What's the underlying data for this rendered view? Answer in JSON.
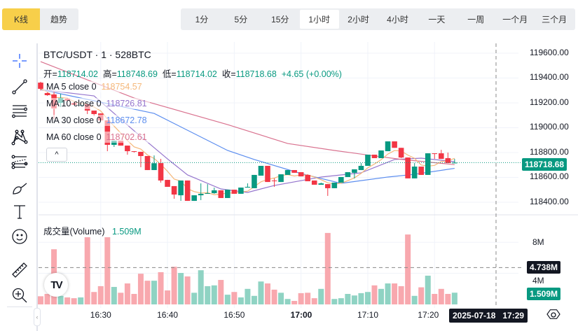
{
  "topbar": {
    "chart_modes": [
      {
        "label": "K线",
        "active": true
      },
      {
        "label": "趋势",
        "active": false
      }
    ],
    "intervals": [
      {
        "label": "1分",
        "active": false
      },
      {
        "label": "5分",
        "active": false
      },
      {
        "label": "15分",
        "active": false
      },
      {
        "label": "1小时",
        "active": true
      },
      {
        "label": "2小时",
        "active": false
      },
      {
        "label": "4小时",
        "active": false
      },
      {
        "label": "一天",
        "active": false
      },
      {
        "label": "一周",
        "active": false
      },
      {
        "label": "一个月",
        "active": false
      },
      {
        "label": "三个月",
        "active": false
      }
    ]
  },
  "toolbar": {
    "icons": [
      "crosshair-icon",
      "trend-line-icon",
      "fib-retracement-icon",
      "pattern-icon",
      "parallel-channel-icon",
      "brush-icon",
      "text-icon",
      "emoji-icon",
      "ruler-icon",
      "zoom-in-icon"
    ]
  },
  "legend": {
    "title": "BTC/USDT · 1 · 528BTC",
    "open_label": "开=",
    "open": "118714.02",
    "high_label": "高=",
    "high": "118748.69",
    "low_label": "低=",
    "low": "118714.02",
    "close_label": "收=",
    "close": "118718.68",
    "change": "+4.65 (+0.00%)",
    "ma": [
      {
        "label": "MA 5 close 0",
        "value": "118754.57",
        "color": "#f5b87a"
      },
      {
        "label": "MA 10 close 0",
        "value": "118726.81",
        "color": "#9575cd"
      },
      {
        "label": "MA 30 close 0",
        "value": "118672.78",
        "color": "#5b8def"
      },
      {
        "label": "MA 60 close 0",
        "value": "118702.61",
        "color": "#d9728f"
      }
    ],
    "collapse_symbol": "^"
  },
  "volume_legend": {
    "label": "成交量(Volume)",
    "value": "1.509M"
  },
  "price_axis": {
    "ticks": [
      "119600.00",
      "119400.00",
      "119200.00",
      "119000.00",
      "118800.00",
      "118600.00",
      "118400.00"
    ],
    "last_price": "118718.68"
  },
  "volume_axis": {
    "ticks": [
      "8M",
      "4M"
    ],
    "crosshair_value": "4.738M",
    "last_volume": "1.509M"
  },
  "time_axis": {
    "ticks": [
      "16:30",
      "16:40",
      "16:50",
      "17:00",
      "17:10",
      "17:20"
    ],
    "crosshair_label": "2025-07-18   17:29"
  },
  "colors": {
    "up": "#089981",
    "down": "#f23645",
    "vol_up": "#8fd3c3",
    "vol_down": "#f8a8ae",
    "accent": "#f7cf4a",
    "tag_dark": "#131722"
  },
  "chart_data": {
    "type": "candlestick",
    "symbol": "BTC/USDT",
    "interval": "1",
    "price_range": [
      118400,
      119600
    ],
    "grid": true,
    "candles": [
      {
        "t": "16:21",
        "o": 119363,
        "h": 119370,
        "l": 119300,
        "c": 119313,
        "v": 1.05
      },
      {
        "t": "16:22",
        "o": 119279,
        "h": 119285,
        "l": 119257,
        "c": 119262,
        "v": 1.35
      },
      {
        "t": "16:23",
        "o": 119268,
        "h": 119296,
        "l": 119070,
        "c": 119155,
        "v": 7.1
      },
      {
        "t": "16:24",
        "o": 119200,
        "h": 119273,
        "l": 119166,
        "c": 119239,
        "v": 1.1
      },
      {
        "t": "16:25",
        "o": 119234,
        "h": 119240,
        "l": 119217,
        "c": 119217,
        "v": 0.9
      },
      {
        "t": "16:26",
        "o": 119200,
        "h": 119205,
        "l": 119183,
        "c": 119183,
        "v": 0.8
      },
      {
        "t": "16:27",
        "o": 119181,
        "h": 119189,
        "l": 119178,
        "c": 119184,
        "v": 0.9
      },
      {
        "t": "16:28",
        "o": 119189,
        "h": 119189,
        "l": 119110,
        "c": 119138,
        "v": 8.65
      },
      {
        "t": "16:29",
        "o": 119138,
        "h": 119138,
        "l": 119093,
        "c": 119110,
        "v": 1.6
      },
      {
        "t": "16:30",
        "o": 119115,
        "h": 119115,
        "l": 119059,
        "c": 119059,
        "v": 2.35
      },
      {
        "t": "16:31",
        "o": 119059,
        "h": 119059,
        "l": 118811,
        "c": 118862,
        "v": 8.65
      },
      {
        "t": "16:32",
        "o": 118862,
        "h": 118896,
        "l": 118845,
        "c": 118896,
        "v": 2.25
      },
      {
        "t": "16:33",
        "o": 118896,
        "h": 118896,
        "l": 118856,
        "c": 118856,
        "v": 1.5
      },
      {
        "t": "16:34",
        "o": 118856,
        "h": 118856,
        "l": 118783,
        "c": 118811,
        "v": 2.7
      },
      {
        "t": "16:35",
        "o": 118811,
        "h": 118811,
        "l": 118800,
        "c": 118806,
        "v": 1.35
      },
      {
        "t": "16:36",
        "o": 118806,
        "h": 118806,
        "l": 118682,
        "c": 118772,
        "v": 3.95
      },
      {
        "t": "16:37",
        "o": 118772,
        "h": 118772,
        "l": 118659,
        "c": 118659,
        "v": 3.05
      },
      {
        "t": "16:38",
        "o": 118659,
        "h": 118777,
        "l": 118659,
        "c": 118714,
        "v": 3.05
      },
      {
        "t": "16:39",
        "o": 118715,
        "h": 118749,
        "l": 118558,
        "c": 118575,
        "v": 4.15
      },
      {
        "t": "16:40",
        "o": 118580,
        "h": 118580,
        "l": 118524,
        "c": 118524,
        "v": 1.8
      },
      {
        "t": "16:41",
        "o": 118530,
        "h": 118530,
        "l": 118428,
        "c": 118462,
        "v": 4.85
      },
      {
        "t": "16:42",
        "o": 118456,
        "h": 118575,
        "l": 118411,
        "c": 118575,
        "v": 4.05
      },
      {
        "t": "16:43",
        "o": 118575,
        "h": 118575,
        "l": 118411,
        "c": 118411,
        "v": 3.6
      },
      {
        "t": "16:44",
        "o": 118411,
        "h": 118456,
        "l": 118411,
        "c": 118456,
        "v": 1.5
      },
      {
        "t": "16:45",
        "o": 118456,
        "h": 118552,
        "l": 118417,
        "c": 118468,
        "v": 4.4
      },
      {
        "t": "16:46",
        "o": 118468,
        "h": 118546,
        "l": 118468,
        "c": 118473,
        "v": 2.35
      },
      {
        "t": "16:47",
        "o": 118473,
        "h": 118518,
        "l": 118468,
        "c": 118496,
        "v": 2.45
      },
      {
        "t": "16:48",
        "o": 118496,
        "h": 118496,
        "l": 118434,
        "c": 118434,
        "v": 3.15
      },
      {
        "t": "16:49",
        "o": 118434,
        "h": 118501,
        "l": 118434,
        "c": 118501,
        "v": 1.25
      },
      {
        "t": "16:50",
        "o": 118501,
        "h": 118501,
        "l": 118468,
        "c": 118468,
        "v": 1.6
      },
      {
        "t": "16:51",
        "o": 118468,
        "h": 118518,
        "l": 118468,
        "c": 118518,
        "v": 0.9
      },
      {
        "t": "16:52",
        "o": 118518,
        "h": 118552,
        "l": 118518,
        "c": 118524,
        "v": 2.0
      },
      {
        "t": "16:53",
        "o": 118513,
        "h": 118620,
        "l": 118513,
        "c": 118620,
        "v": 1.1
      },
      {
        "t": "16:54",
        "o": 118614,
        "h": 118693,
        "l": 118614,
        "c": 118693,
        "v": 2.95
      },
      {
        "t": "16:55",
        "o": 118693,
        "h": 118693,
        "l": 118563,
        "c": 118563,
        "v": 2.7
      },
      {
        "t": "16:56",
        "o": 118575,
        "h": 118592,
        "l": 118524,
        "c": 118572,
        "v": 1.9
      },
      {
        "t": "16:57",
        "o": 118563,
        "h": 118625,
        "l": 118563,
        "c": 118625,
        "v": 1.5
      },
      {
        "t": "16:58",
        "o": 118620,
        "h": 118659,
        "l": 118620,
        "c": 118659,
        "v": 0.7
      },
      {
        "t": "16:59",
        "o": 118659,
        "h": 118659,
        "l": 118637,
        "c": 118637,
        "v": 0.45
      },
      {
        "t": "17:00",
        "o": 118642,
        "h": 118642,
        "l": 118608,
        "c": 118608,
        "v": 1.45
      },
      {
        "t": "17:01",
        "o": 118620,
        "h": 118625,
        "l": 118569,
        "c": 118569,
        "v": 1.5
      },
      {
        "t": "17:02",
        "o": 118575,
        "h": 118575,
        "l": 118541,
        "c": 118541,
        "v": 0.8
      },
      {
        "t": "17:03",
        "o": 118541,
        "h": 118558,
        "l": 118541,
        "c": 118552,
        "v": 2.0
      },
      {
        "t": "17:04",
        "o": 118546,
        "h": 118546,
        "l": 118451,
        "c": 118513,
        "v": 9.2
      },
      {
        "t": "17:05",
        "o": 118513,
        "h": 118558,
        "l": 118513,
        "c": 118558,
        "v": 0.7
      },
      {
        "t": "17:06",
        "o": 118558,
        "h": 118603,
        "l": 118558,
        "c": 118603,
        "v": 0.8
      },
      {
        "t": "17:07",
        "o": 118603,
        "h": 118642,
        "l": 118603,
        "c": 118642,
        "v": 1.35
      },
      {
        "t": "17:08",
        "o": 118637,
        "h": 118665,
        "l": 118592,
        "c": 118665,
        "v": 1.15
      },
      {
        "t": "17:09",
        "o": 118659,
        "h": 118715,
        "l": 118659,
        "c": 118693,
        "v": 1.45
      },
      {
        "t": "17:10",
        "o": 118693,
        "h": 118783,
        "l": 118693,
        "c": 118783,
        "v": 1.6
      },
      {
        "t": "17:11",
        "o": 118783,
        "h": 118783,
        "l": 118755,
        "c": 118755,
        "v": 2.45
      },
      {
        "t": "17:12",
        "o": 118755,
        "h": 118817,
        "l": 118755,
        "c": 118817,
        "v": 2.0
      },
      {
        "t": "17:13",
        "o": 118811,
        "h": 118890,
        "l": 118811,
        "c": 118890,
        "v": 2.7
      },
      {
        "t": "17:14",
        "o": 118890,
        "h": 118890,
        "l": 118838,
        "c": 118838,
        "v": 2.7
      },
      {
        "t": "17:15",
        "o": 118838,
        "h": 118838,
        "l": 118755,
        "c": 118760,
        "v": 2.35
      },
      {
        "t": "17:16",
        "o": 118760,
        "h": 118760,
        "l": 118592,
        "c": 118592,
        "v": 9.0
      },
      {
        "t": "17:17",
        "o": 118592,
        "h": 118715,
        "l": 118592,
        "c": 118687,
        "v": 1.1
      },
      {
        "t": "17:18",
        "o": 118687,
        "h": 118687,
        "l": 118620,
        "c": 118620,
        "v": 2.2
      },
      {
        "t": "17:19",
        "o": 118620,
        "h": 118794,
        "l": 118620,
        "c": 118794,
        "v": 3.7
      },
      {
        "t": "17:20",
        "o": 118794,
        "h": 118794,
        "l": 118749,
        "c": 118790,
        "v": 1.35
      },
      {
        "t": "17:21",
        "o": 118794,
        "h": 118822,
        "l": 118749,
        "c": 118749,
        "v": 2.0
      },
      {
        "t": "17:22",
        "o": 118755,
        "h": 118800,
        "l": 118715,
        "c": 118715,
        "v": 1.35
      },
      {
        "t": "17:23",
        "o": 118714.02,
        "h": 118748.69,
        "l": 118714.02,
        "c": 118718.68,
        "v": 1.509
      }
    ],
    "ma_lines": {
      "MA 10": [
        [
          "16:21",
          119307
        ],
        [
          "16:29",
          119256
        ],
        [
          "16:35",
          118975
        ],
        [
          "16:40",
          118749
        ],
        [
          "16:43",
          118620
        ],
        [
          "16:48",
          118507
        ],
        [
          "16:52",
          118479
        ],
        [
          "16:56",
          118535
        ],
        [
          "17:03",
          118603
        ],
        [
          "17:09",
          118637
        ],
        [
          "17:14",
          118744
        ],
        [
          "17:18",
          118755
        ],
        [
          "17:23",
          118726.81
        ]
      ],
      "MA 30": [
        [
          "16:21",
          119307
        ],
        [
          "16:38",
          119115
        ],
        [
          "16:49",
          118817
        ],
        [
          "16:53",
          118744
        ],
        [
          "17:00",
          118631
        ],
        [
          "17:06",
          118552
        ],
        [
          "17:13",
          118603
        ],
        [
          "17:17",
          118625
        ],
        [
          "17:23",
          118672.78
        ]
      ],
      "MA 60": [
        [
          "16:21",
          119532
        ],
        [
          "16:35",
          119239
        ],
        [
          "16:49",
          119025
        ],
        [
          "16:58",
          118873
        ],
        [
          "17:05",
          118817
        ],
        [
          "17:11",
          118773
        ],
        [
          "17:15",
          118745
        ],
        [
          "17:23",
          118702.61
        ]
      ]
    },
    "volume_unit": "M",
    "volume_range": [
      0,
      8
    ],
    "crosshair": {
      "time": "2025-07-18 17:29",
      "volume": 4.738
    }
  }
}
